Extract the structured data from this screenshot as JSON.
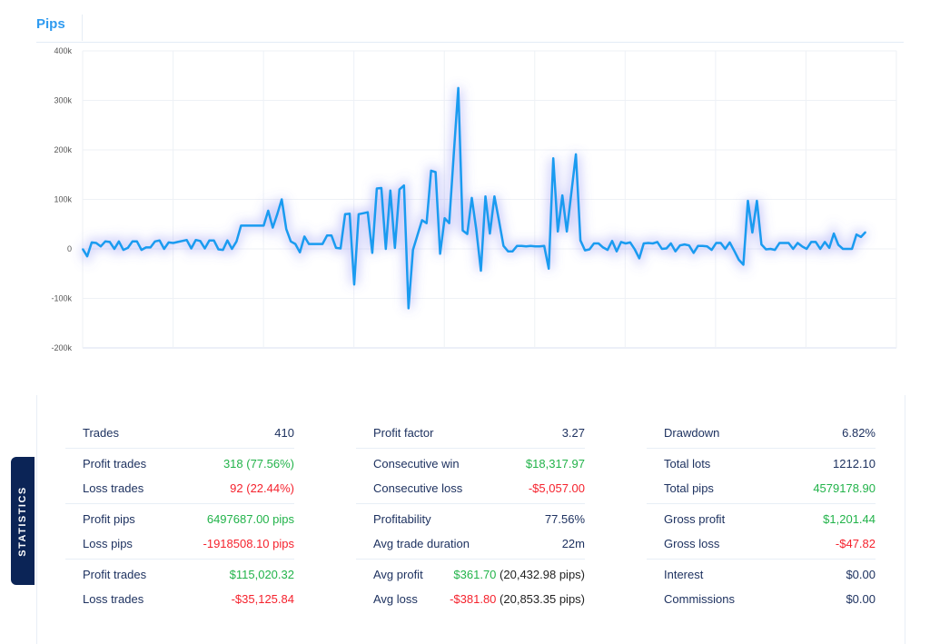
{
  "header": {
    "title": "Pips"
  },
  "chart_data": {
    "type": "line",
    "title": "Pips",
    "ylim": [
      -200000,
      400000
    ],
    "y_ticks": [
      400000,
      300000,
      200000,
      100000,
      0,
      -100000,
      -200000
    ],
    "y_tick_labels": [
      "400k",
      "300k",
      "200k",
      "100k",
      "0",
      "-100k",
      "-200k"
    ],
    "x_tick_labels": [],
    "grid": true,
    "line_color": "#1a9bf0",
    "series": [
      {
        "values": [
          0,
          -15000,
          13000,
          12000,
          5000,
          15000,
          14000,
          0,
          15000,
          -2000,
          2000,
          15000,
          15000,
          -2000,
          3000,
          3000,
          15000,
          17000,
          0,
          13000,
          12000,
          14000,
          16000,
          18000,
          1000,
          18000,
          16000,
          1000,
          17000,
          17000,
          -1000,
          -2000,
          17000,
          0,
          15000,
          47000,
          47000,
          47000,
          47000,
          47000,
          47000,
          77000,
          43000,
          70000,
          100000,
          40000,
          15000,
          10000,
          -7000,
          25000,
          10000,
          10000,
          10000,
          10000,
          27000,
          27000,
          2000,
          1000,
          70000,
          71000,
          -72000,
          70000,
          72000,
          74000,
          -8000,
          122000,
          123000,
          0,
          118000,
          2000,
          120000,
          128000,
          -120000,
          -2000,
          28000,
          58000,
          52000,
          158000,
          155000,
          -10000,
          62000,
          52000,
          190000,
          325000,
          37000,
          30000,
          103000,
          38000,
          -44000,
          106000,
          31000,
          106000,
          57000,
          6000,
          -5000,
          -5000,
          6000,
          6000,
          5000,
          6000,
          5000,
          5000,
          6000,
          -40000,
          183000,
          35000,
          108000,
          35000,
          113000,
          191000,
          17000,
          -3000,
          -1000,
          11000,
          11000,
          3000,
          -2000,
          16000,
          -5000,
          14000,
          11000,
          13000,
          -1000,
          -19000,
          11000,
          12000,
          11000,
          14000,
          0,
          1000,
          11000,
          -5000,
          7000,
          9000,
          7000,
          -8000,
          6000,
          6000,
          5000,
          -2000,
          12000,
          12000,
          0,
          13000,
          -4000,
          -22000,
          -32000,
          97000,
          33000,
          97000,
          9000,
          -1000,
          0,
          -2000,
          12000,
          12000,
          12000,
          0,
          12000,
          5000,
          0,
          14000,
          14000,
          0,
          14000,
          2000,
          31000,
          8000,
          0,
          0,
          0,
          29000,
          24000,
          34000
        ]
      }
    ]
  },
  "stats": {
    "tab_label": "STATISTICS",
    "columns": [
      {
        "groups": [
          {
            "rows": [
              {
                "label": "Trades",
                "value": "410",
                "color": "dark"
              }
            ]
          },
          {
            "rows": [
              {
                "label": "Profit trades",
                "value": "318 (77.56%)",
                "color": "green"
              },
              {
                "label": "Loss trades",
                "value": "92 (22.44%)",
                "color": "red"
              }
            ]
          },
          {
            "rows": [
              {
                "label": "Profit pips",
                "value": "6497687.00 pips",
                "color": "green"
              },
              {
                "label": "Loss pips",
                "value": "-1918508.10 pips",
                "color": "red"
              }
            ]
          },
          {
            "rows": [
              {
                "label": "Profit trades",
                "value": "$115,020.32",
                "color": "green"
              },
              {
                "label": "Loss trades",
                "value": "-$35,125.84",
                "color": "red"
              }
            ]
          }
        ]
      },
      {
        "groups": [
          {
            "rows": [
              {
                "label": "Profit factor",
                "value": "3.27",
                "color": "dark"
              }
            ]
          },
          {
            "rows": [
              {
                "label": "Consecutive win",
                "value": "$18,317.97",
                "color": "green"
              },
              {
                "label": "Consecutive loss",
                "value": "-$5,057.00",
                "color": "red"
              }
            ]
          },
          {
            "rows": [
              {
                "label": "Profitability",
                "value": "77.56%",
                "color": "dark"
              },
              {
                "label": "Avg trade duration",
                "value": "22m",
                "color": "dark"
              }
            ]
          },
          {
            "rows": [
              {
                "label": "Avg profit",
                "value": "$361.70",
                "extra": "(20,432.98 pips)",
                "color": "green"
              },
              {
                "label": "Avg loss",
                "value": "-$381.80",
                "extra": "(20,853.35 pips)",
                "color": "red"
              }
            ]
          }
        ]
      },
      {
        "groups": [
          {
            "rows": [
              {
                "label": "Drawdown",
                "value": "6.82%",
                "color": "dark"
              }
            ]
          },
          {
            "rows": [
              {
                "label": "Total lots",
                "value": "1212.10",
                "color": "dark"
              },
              {
                "label": "Total pips",
                "value": "4579178.90",
                "color": "green"
              }
            ]
          },
          {
            "rows": [
              {
                "label": "Gross profit",
                "value": "$1,201.44",
                "color": "green"
              },
              {
                "label": "Gross loss",
                "value": "-$47.82",
                "color": "red"
              }
            ]
          },
          {
            "rows": [
              {
                "label": "Interest",
                "value": "$0.00",
                "color": "dark"
              },
              {
                "label": "Commissions",
                "value": "$0.00",
                "color": "dark"
              }
            ]
          }
        ]
      }
    ]
  }
}
